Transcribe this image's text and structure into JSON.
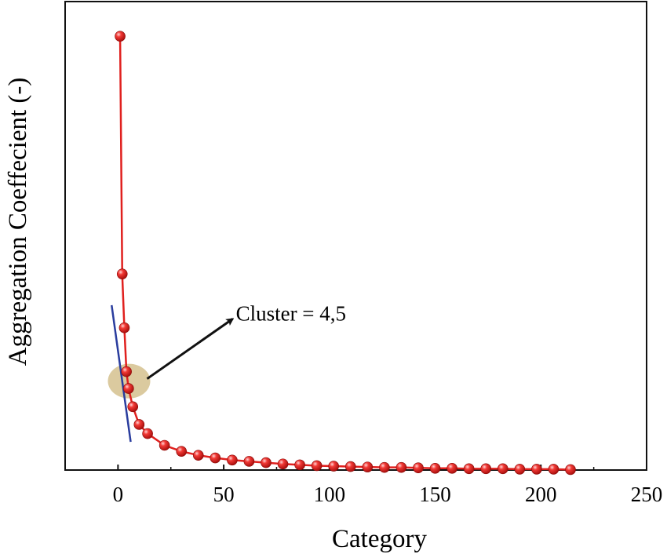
{
  "chart_data": {
    "type": "line",
    "title": "",
    "xlabel": "Category",
    "ylabel": "Aggregation Coeffecient (-)",
    "xlim": [
      -25,
      250
    ],
    "ylim": [
      0,
      1.08
    ],
    "xticks": [
      0,
      50,
      100,
      150,
      200,
      250
    ],
    "show_y_tick_labels": false,
    "grid": false,
    "series": [
      {
        "color": "#e0201e",
        "marker": "sphere",
        "x": [
          1,
          2,
          3,
          4,
          5,
          7,
          10,
          14,
          22,
          30,
          38,
          46,
          54,
          62,
          70,
          78,
          86,
          94,
          102,
          110,
          118,
          126,
          134,
          142,
          150,
          158,
          166,
          174,
          182,
          190,
          198,
          206,
          214
        ],
        "y": [
          1.0,
          0.452,
          0.328,
          0.227,
          0.188,
          0.146,
          0.105,
          0.084,
          0.057,
          0.043,
          0.034,
          0.028,
          0.023,
          0.02,
          0.017,
          0.014,
          0.012,
          0.01,
          0.009,
          0.008,
          0.007,
          0.006,
          0.006,
          0.005,
          0.004,
          0.004,
          0.003,
          0.003,
          0.003,
          0.002,
          0.002,
          0.002,
          0.001
        ]
      }
    ],
    "annotations": [
      {
        "text": "Cluster = 4,5",
        "x": 55,
        "y": 0.363,
        "arrow_from": [
          4.5,
          0.205
        ],
        "arrow_to": [
          55,
          0.363
        ]
      }
    ],
    "highlight_region": {
      "x": 4.5,
      "y": 0.205,
      "color": "#d9c79a"
    },
    "tangent_line": {
      "x1": -3,
      "y1": 0.38,
      "x2": 6,
      "y2": 0.065,
      "color": "#2a3d9e"
    }
  }
}
